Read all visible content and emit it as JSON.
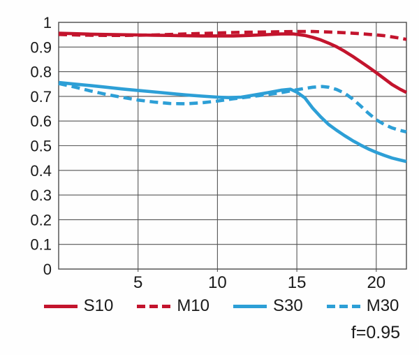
{
  "chart_data": {
    "type": "line",
    "title": "",
    "xlabel": "",
    "ylabel": "",
    "xlim": [
      0,
      21.9
    ],
    "ylim": [
      0,
      1
    ],
    "grid": true,
    "legend_position": "bottom",
    "annotation": "f=0.95",
    "colors": {
      "red": "#c3142d",
      "blue": "#2d9fd6",
      "grid": "#555555",
      "frame": "#4a4a4a",
      "text": "#1a1a1a"
    },
    "x_ticks": [
      {
        "value": 5,
        "label": "5"
      },
      {
        "value": 10,
        "label": "10"
      },
      {
        "value": 15,
        "label": "15"
      },
      {
        "value": 20,
        "label": "20"
      }
    ],
    "y_ticks": [
      {
        "value": 0,
        "label": "0"
      },
      {
        "value": 0.1,
        "label": "0.1"
      },
      {
        "value": 0.2,
        "label": "0.2"
      },
      {
        "value": 0.3,
        "label": "0.3"
      },
      {
        "value": 0.4,
        "label": "0.4"
      },
      {
        "value": 0.5,
        "label": "0.5"
      },
      {
        "value": 0.6,
        "label": "0.6"
      },
      {
        "value": 0.7,
        "label": "0.7"
      },
      {
        "value": 0.8,
        "label": "0.8"
      },
      {
        "value": 0.9,
        "label": "0.9"
      },
      {
        "value": 1,
        "label": "1"
      }
    ],
    "series": [
      {
        "name": "S10",
        "color": "#c3142d",
        "dash": false,
        "points": [
          [
            0,
            0.956
          ],
          [
            1,
            0.954
          ],
          [
            2,
            0.952
          ],
          [
            3,
            0.951
          ],
          [
            4,
            0.95
          ],
          [
            5,
            0.949
          ],
          [
            6,
            0.948
          ],
          [
            7,
            0.947
          ],
          [
            8,
            0.946
          ],
          [
            9,
            0.945
          ],
          [
            10,
            0.945
          ],
          [
            11,
            0.945
          ],
          [
            12,
            0.947
          ],
          [
            13,
            0.95
          ],
          [
            14,
            0.953
          ],
          [
            14.8,
            0.953
          ],
          [
            15.5,
            0.947
          ],
          [
            16,
            0.939
          ],
          [
            16.5,
            0.929
          ],
          [
            17,
            0.916
          ],
          [
            17.5,
            0.901
          ],
          [
            18,
            0.883
          ],
          [
            18.5,
            0.863
          ],
          [
            19,
            0.841
          ],
          [
            19.5,
            0.819
          ],
          [
            20,
            0.796
          ],
          [
            20.5,
            0.772
          ],
          [
            21,
            0.748
          ],
          [
            21.5,
            0.729
          ],
          [
            21.9,
            0.716
          ]
        ]
      },
      {
        "name": "M10",
        "color": "#c3142d",
        "dash": true,
        "points": [
          [
            0,
            0.951
          ],
          [
            1,
            0.949
          ],
          [
            2,
            0.948
          ],
          [
            3,
            0.947
          ],
          [
            4,
            0.947
          ],
          [
            5,
            0.948
          ],
          [
            6,
            0.949
          ],
          [
            7,
            0.951
          ],
          [
            8,
            0.953
          ],
          [
            9,
            0.955
          ],
          [
            10,
            0.957
          ],
          [
            11,
            0.959
          ],
          [
            12,
            0.96
          ],
          [
            13,
            0.961
          ],
          [
            14,
            0.962
          ],
          [
            15,
            0.963
          ],
          [
            16,
            0.963
          ],
          [
            17,
            0.961
          ],
          [
            18,
            0.958
          ],
          [
            19,
            0.954
          ],
          [
            20,
            0.949
          ],
          [
            20.5,
            0.946
          ],
          [
            21,
            0.941
          ],
          [
            21.5,
            0.936
          ],
          [
            21.9,
            0.931
          ]
        ]
      },
      {
        "name": "S30",
        "color": "#2d9fd6",
        "dash": false,
        "points": [
          [
            0,
            0.756
          ],
          [
            1,
            0.75
          ],
          [
            2,
            0.744
          ],
          [
            3,
            0.737
          ],
          [
            4,
            0.73
          ],
          [
            5,
            0.724
          ],
          [
            6,
            0.718
          ],
          [
            7,
            0.712
          ],
          [
            8,
            0.706
          ],
          [
            9,
            0.701
          ],
          [
            10,
            0.697
          ],
          [
            10.7,
            0.695
          ],
          [
            11.5,
            0.697
          ],
          [
            12,
            0.702
          ],
          [
            13,
            0.713
          ],
          [
            14,
            0.725
          ],
          [
            14.6,
            0.729
          ],
          [
            15,
            0.717
          ],
          [
            15.5,
            0.694
          ],
          [
            16,
            0.652
          ],
          [
            16.5,
            0.617
          ],
          [
            17,
            0.586
          ],
          [
            17.5,
            0.563
          ],
          [
            18,
            0.541
          ],
          [
            18.5,
            0.521
          ],
          [
            19,
            0.503
          ],
          [
            19.5,
            0.487
          ],
          [
            20,
            0.473
          ],
          [
            20.5,
            0.461
          ],
          [
            21,
            0.45
          ],
          [
            21.5,
            0.442
          ],
          [
            21.9,
            0.436
          ]
        ]
      },
      {
        "name": "M30",
        "color": "#2d9fd6",
        "dash": true,
        "points": [
          [
            0,
            0.752
          ],
          [
            1,
            0.738
          ],
          [
            2,
            0.722
          ],
          [
            3,
            0.708
          ],
          [
            4,
            0.696
          ],
          [
            5,
            0.685
          ],
          [
            6,
            0.677
          ],
          [
            7,
            0.671
          ],
          [
            8,
            0.67
          ],
          [
            9,
            0.674
          ],
          [
            10,
            0.681
          ],
          [
            11,
            0.69
          ],
          [
            12,
            0.698
          ],
          [
            13,
            0.706
          ],
          [
            14,
            0.715
          ],
          [
            15,
            0.727
          ],
          [
            16,
            0.737
          ],
          [
            16.6,
            0.74
          ],
          [
            17,
            0.737
          ],
          [
            17.5,
            0.728
          ],
          [
            18,
            0.713
          ],
          [
            18.5,
            0.69
          ],
          [
            19,
            0.662
          ],
          [
            19.5,
            0.632
          ],
          [
            20,
            0.605
          ],
          [
            20.5,
            0.586
          ],
          [
            21,
            0.572
          ],
          [
            21.5,
            0.562
          ],
          [
            21.9,
            0.556
          ]
        ]
      }
    ]
  }
}
